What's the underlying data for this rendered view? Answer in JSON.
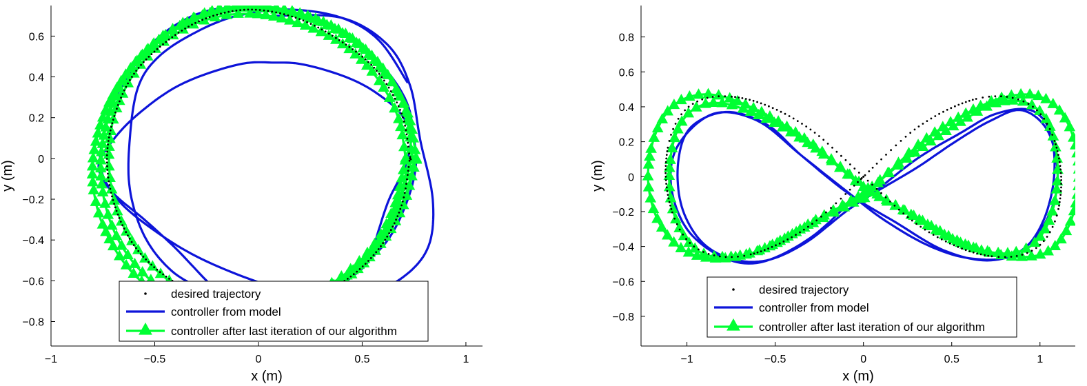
{
  "chart_data": [
    {
      "type": "line",
      "xlabel": "x (m)",
      "ylabel": "y (m)",
      "xlim": [
        -1.0,
        1.08
      ],
      "ylim": [
        -0.92,
        0.75
      ],
      "xticks": [
        -1,
        -0.5,
        0,
        0.5,
        1
      ],
      "yticks": [
        -0.8,
        -0.6,
        -0.4,
        -0.2,
        0,
        0.2,
        0.4,
        0.6
      ],
      "xtick_labels": [
        "−1",
        "−0.5",
        "0",
        "0.5",
        "1"
      ],
      "ytick_labels": [
        "−0.8",
        "−0.6",
        "−0.4",
        "−0.2",
        "0",
        "0.2",
        "0.4",
        "0.6"
      ],
      "legend_position": "bottom-center",
      "legend": [
        "desired trajectory",
        "controller from model",
        "controller after last iteration of our algorithm"
      ],
      "series": [
        {
          "name": "desired trajectory",
          "color": "#000000",
          "marker": "dot",
          "trajectory": "circle",
          "x": [
            0.73,
            0.69,
            0.57,
            0.39,
            0.18,
            -0.05,
            -0.27,
            -0.46,
            -0.61,
            -0.7,
            -0.73,
            -0.69,
            -0.59,
            -0.43,
            -0.23,
            0.0,
            0.23,
            0.43,
            0.59,
            0.69,
            0.73
          ],
          "y": [
            0.0,
            0.22,
            0.43,
            0.58,
            0.69,
            0.73,
            0.68,
            0.56,
            0.4,
            0.19,
            -0.02,
            -0.24,
            -0.44,
            -0.59,
            -0.69,
            -0.73,
            -0.69,
            -0.59,
            -0.43,
            -0.23,
            0.0
          ]
        },
        {
          "name": "controller from model",
          "color": "#0d14d9",
          "marker": "none",
          "trajectory": "circle-tracking",
          "x": [
            0.08,
            0.4,
            0.62,
            0.73,
            0.78,
            0.84,
            0.82,
            0.7,
            0.52,
            0.25,
            -0.02,
            -0.3,
            -0.52,
            -0.68,
            -0.76,
            -0.75,
            -0.71,
            -0.6,
            -0.45,
            -0.22,
            0.08,
            0.36,
            0.6,
            0.73,
            0.72,
            0.63,
            0.58,
            0.55,
            0.51,
            0.36,
            0.15,
            -0.1,
            -0.25,
            -0.4,
            -0.55,
            -0.7,
            -0.77,
            -0.73,
            -0.6,
            -0.38,
            -0.1,
            0.08,
            0.22,
            0.42,
            0.57,
            0.7,
            0.76,
            0.72,
            0.6,
            0.38,
            0.12,
            -0.05,
            -0.25,
            -0.42,
            -0.55,
            -0.62,
            -0.62,
            -0.58,
            -0.48,
            -0.3,
            -0.1,
            0.15,
            0.4,
            0.58,
            0.72
          ],
          "y": [
            0.7,
            0.69,
            0.56,
            0.36,
            0.09,
            -0.2,
            -0.43,
            -0.58,
            -0.66,
            -0.68,
            -0.6,
            -0.48,
            -0.34,
            -0.2,
            -0.05,
            0.1,
            0.25,
            0.45,
            0.62,
            0.73,
            0.72,
            0.64,
            0.45,
            0.23,
            0.0,
            -0.2,
            -0.35,
            -0.45,
            -0.53,
            -0.64,
            -0.72,
            -0.75,
            -0.6,
            -0.44,
            -0.3,
            -0.17,
            -0.05,
            0.05,
            0.2,
            0.36,
            0.46,
            0.47,
            0.46,
            0.4,
            0.32,
            0.2,
            0.02,
            -0.2,
            -0.43,
            -0.6,
            -0.7,
            -0.73,
            -0.65,
            -0.55,
            -0.38,
            -0.15,
            0.1,
            0.35,
            0.5,
            0.62,
            0.7,
            0.73,
            0.69,
            0.58,
            0.37
          ]
        },
        {
          "name": "controller after last iteration of our algorithm",
          "color": "#00ff33",
          "marker": "triangle",
          "trajectory": "circle-tracking-3-loops",
          "loops": [
            {
              "x": [
                0.74,
                0.71,
                0.6,
                0.42,
                0.2,
                -0.03,
                -0.26,
                -0.46,
                -0.62,
                -0.72,
                -0.76,
                -0.73,
                -0.64,
                -0.49,
                -0.29,
                -0.06,
                0.17,
                0.38,
                0.55,
                0.67,
                0.74
              ],
              "y": [
                0.0,
                0.23,
                0.44,
                0.61,
                0.71,
                0.75,
                0.71,
                0.6,
                0.43,
                0.21,
                -0.03,
                -0.26,
                -0.46,
                -0.62,
                -0.72,
                -0.76,
                -0.72,
                -0.61,
                -0.45,
                -0.24,
                0.0
              ]
            },
            {
              "x": [
                0.76,
                0.72,
                0.61,
                0.44,
                0.21,
                -0.04,
                -0.27,
                -0.48,
                -0.64,
                -0.75,
                -0.8,
                -0.77,
                -0.67,
                -0.52,
                -0.31,
                -0.07,
                0.16,
                0.37,
                0.55,
                0.69,
                0.76
              ],
              "y": [
                0.0,
                0.22,
                0.42,
                0.59,
                0.7,
                0.74,
                0.7,
                0.58,
                0.41,
                0.2,
                -0.04,
                -0.27,
                -0.48,
                -0.64,
                -0.75,
                -0.79,
                -0.75,
                -0.63,
                -0.47,
                -0.25,
                0.0
              ]
            },
            {
              "x": [
                0.71,
                0.67,
                0.56,
                0.39,
                0.17,
                -0.06,
                -0.28,
                -0.47,
                -0.61,
                -0.7,
                -0.72,
                -0.68,
                -0.58,
                -0.43,
                -0.24,
                -0.02,
                0.2,
                0.4,
                0.56,
                0.66,
                0.71
              ],
              "y": [
                0.0,
                0.21,
                0.41,
                0.57,
                0.67,
                0.71,
                0.67,
                0.56,
                0.4,
                0.19,
                -0.04,
                -0.26,
                -0.45,
                -0.6,
                -0.7,
                -0.73,
                -0.69,
                -0.58,
                -0.42,
                -0.22,
                0.0
              ]
            }
          ]
        }
      ]
    },
    {
      "type": "line",
      "xlabel": "x (m)",
      "ylabel": "y (m)",
      "xlim": [
        -1.26,
        1.2
      ],
      "ylim": [
        -0.97,
        0.98
      ],
      "xticks": [
        -1,
        -0.5,
        0,
        0.5,
        1
      ],
      "yticks": [
        -0.8,
        -0.6,
        -0.4,
        -0.2,
        0,
        0.2,
        0.4,
        0.6,
        0.8
      ],
      "xtick_labels": [
        "−1",
        "−0.5",
        "0",
        "0.5",
        "1"
      ],
      "ytick_labels": [
        "−0.8",
        "−0.6",
        "−0.4",
        "−0.2",
        "0",
        "0.2",
        "0.4",
        "0.6",
        "0.8"
      ],
      "legend_position": "bottom-center",
      "legend": [
        "desired trajectory",
        "controller from model",
        "controller after last iteration of our algorithm"
      ],
      "series": [
        {
          "name": "desired trajectory",
          "color": "#000000",
          "marker": "dot",
          "trajectory": "figure-eight",
          "x": [
            0.0,
            0.29,
            0.56,
            0.78,
            0.96,
            1.07,
            1.12,
            1.09,
            0.99,
            0.82,
            0.58,
            0.3,
            0.0,
            -0.3,
            -0.58,
            -0.82,
            -0.99,
            -1.09,
            -1.12,
            -1.07,
            -0.96,
            -0.78,
            -0.56,
            -0.29,
            0.0
          ],
          "y": [
            0.0,
            0.27,
            0.42,
            0.46,
            0.4,
            0.24,
            0.0,
            -0.24,
            -0.4,
            -0.46,
            -0.42,
            -0.27,
            0.0,
            0.27,
            0.42,
            0.46,
            0.4,
            0.24,
            0.0,
            -0.24,
            -0.4,
            -0.46,
            -0.42,
            -0.27,
            0.0
          ]
        },
        {
          "name": "controller from model",
          "color": "#0d14d9",
          "marker": "none",
          "trajectory": "figure-eight-tracking",
          "x": [
            0.05,
            0.3,
            0.55,
            0.75,
            0.95,
            1.06,
            1.08,
            1.02,
            0.9,
            0.7,
            0.45,
            0.18,
            -0.08,
            -0.35,
            -0.55,
            -0.78,
            -0.98,
            -1.05,
            -1.03,
            -0.92,
            -0.75,
            -0.55,
            -0.33,
            -0.1,
            0.05,
            0.3,
            0.52,
            0.72,
            0.9,
            1.05,
            1.1,
            1.02,
            0.85,
            0.62,
            0.38,
            0.12,
            -0.1,
            -0.35,
            -0.6,
            -0.85,
            -1.05,
            -1.09,
            -1.0,
            -0.8,
            -0.58,
            -0.3,
            -0.05
          ],
          "y": [
            -0.1,
            0.1,
            0.25,
            0.36,
            0.38,
            0.25,
            0.0,
            -0.25,
            -0.42,
            -0.48,
            -0.42,
            -0.26,
            -0.1,
            0.12,
            0.3,
            0.37,
            0.28,
            0.08,
            -0.17,
            -0.37,
            -0.47,
            -0.48,
            -0.38,
            -0.2,
            -0.1,
            0.05,
            0.2,
            0.32,
            0.38,
            0.25,
            -0.03,
            -0.28,
            -0.45,
            -0.47,
            -0.4,
            -0.25,
            -0.08,
            0.12,
            0.32,
            0.36,
            0.18,
            -0.05,
            -0.3,
            -0.46,
            -0.49,
            -0.35,
            -0.12
          ]
        },
        {
          "name": "controller after last iteration of our algorithm",
          "color": "#00ff33",
          "marker": "triangle",
          "trajectory": "figure-eight-tracking-2-loops",
          "loops": [
            {
              "x": [
                0.0,
                0.31,
                0.58,
                0.82,
                1.02,
                1.16,
                1.22,
                1.18,
                1.06,
                0.86,
                0.6,
                0.31,
                0.0,
                -0.31,
                -0.6,
                -0.86,
                -1.06,
                -1.18,
                -1.22,
                -1.16,
                -1.02,
                -0.82,
                -0.58,
                -0.31,
                0.0
              ],
              "y": [
                -0.12,
                0.18,
                0.36,
                0.46,
                0.45,
                0.3,
                0.04,
                -0.24,
                -0.42,
                -0.46,
                -0.4,
                -0.24,
                -0.05,
                0.2,
                0.38,
                0.47,
                0.42,
                0.24,
                -0.02,
                -0.26,
                -0.42,
                -0.47,
                -0.42,
                -0.28,
                -0.12
              ]
            },
            {
              "x": [
                0.0,
                0.27,
                0.53,
                0.75,
                0.93,
                1.05,
                1.1,
                1.07,
                0.97,
                0.8,
                0.55,
                0.27,
                0.0,
                -0.27,
                -0.55,
                -0.8,
                -0.97,
                -1.07,
                -1.1,
                -1.05,
                -0.93,
                -0.75,
                -0.53,
                -0.27,
                0.0
              ],
              "y": [
                -0.1,
                0.12,
                0.3,
                0.42,
                0.42,
                0.3,
                0.06,
                -0.2,
                -0.38,
                -0.44,
                -0.38,
                -0.22,
                -0.06,
                0.16,
                0.33,
                0.42,
                0.38,
                0.22,
                -0.04,
                -0.28,
                -0.43,
                -0.46,
                -0.4,
                -0.25,
                -0.1
              ]
            }
          ]
        }
      ]
    }
  ]
}
